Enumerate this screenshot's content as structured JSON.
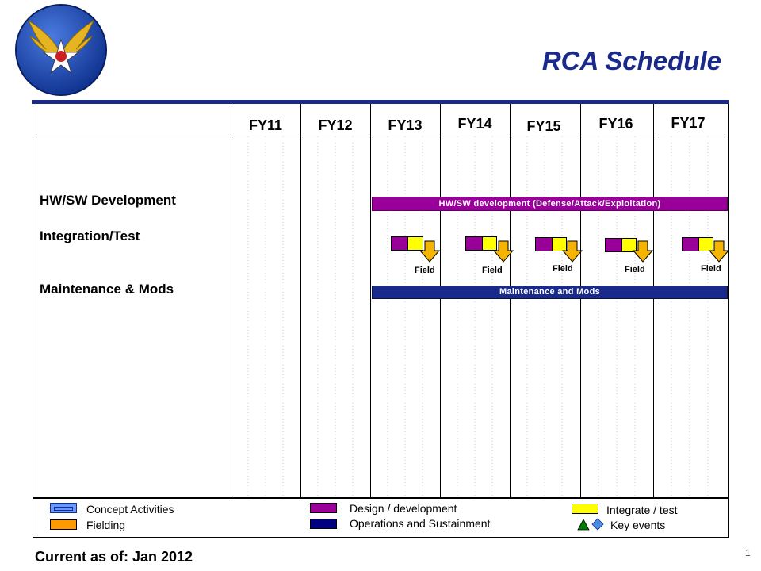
{
  "title": "RCA Schedule",
  "logo": {
    "icon": "army-air-corps-roundel-icon"
  },
  "fiscal_years": [
    "FY11",
    "FY12",
    "FY13",
    "FY14",
    "FY15",
    "FY16",
    "FY17"
  ],
  "rows": [
    {
      "label": "HW/SW Development"
    },
    {
      "label": "Integration/Test"
    },
    {
      "label": "Maintenance & Mods"
    }
  ],
  "bars": {
    "development": {
      "text": "HW/SW development (Defense/Attack/Exploitation)",
      "color": "#990099"
    },
    "maintenance": {
      "text": "Maintenance and Mods",
      "color": "#1a2a8a"
    }
  },
  "integration_events": [
    {
      "field": "Field"
    },
    {
      "field": "Field"
    },
    {
      "field": "Field"
    },
    {
      "field": "Field"
    },
    {
      "field": "Field"
    }
  ],
  "colors": {
    "design": "#990099",
    "integrate": "#ffff00",
    "field_arrow": "#f5b400",
    "ops": "#000080",
    "concept": "#6699ff",
    "fielding": "#ff9900",
    "key_triangle": "#008000",
    "key_diamond": "#4a90e2"
  },
  "legend": {
    "concept": "Concept Activities",
    "fielding": "Fielding",
    "design": "Design / development",
    "ops": "Operations and Sustainment",
    "integrate": "Integrate / test",
    "key_events": "Key events"
  },
  "footer": {
    "current": "Current as of:  Jan 2012",
    "page": "1"
  }
}
